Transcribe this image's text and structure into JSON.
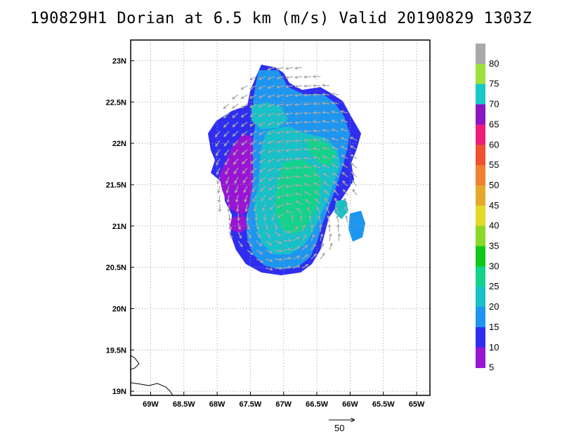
{
  "title": "190829H1 Dorian at 6.5 km (m/s) Valid 20190829 1303Z",
  "map": {
    "lon_range": [
      -69.3,
      -64.8
    ],
    "lat_range": [
      18.95,
      23.25
    ],
    "lon_ticks": [
      {
        "value": -69.0,
        "label": "69W"
      },
      {
        "value": -68.5,
        "label": "68.5W"
      },
      {
        "value": -68.0,
        "label": "68W"
      },
      {
        "value": -67.5,
        "label": "67.5W"
      },
      {
        "value": -67.0,
        "label": "67W"
      },
      {
        "value": -66.5,
        "label": "66.5W"
      },
      {
        "value": -66.0,
        "label": "66W"
      },
      {
        "value": -65.5,
        "label": "65.5W"
      },
      {
        "value": -65.0,
        "label": "65W"
      }
    ],
    "lat_ticks": [
      {
        "value": 19.0,
        "label": "19N"
      },
      {
        "value": 19.5,
        "label": "19.5N"
      },
      {
        "value": 20.0,
        "label": "20N"
      },
      {
        "value": 20.5,
        "label": "20.5N"
      },
      {
        "value": 21.0,
        "label": "21N"
      },
      {
        "value": 21.5,
        "label": "21.5N"
      },
      {
        "value": 22.0,
        "label": "22N"
      },
      {
        "value": 22.5,
        "label": "22.5N"
      },
      {
        "value": 23.0,
        "label": "23N"
      }
    ],
    "grid": "dotted",
    "storm_center": {
      "lon": -66.95,
      "lat": 21.05
    },
    "reference_vector": {
      "value": 50,
      "label": "50"
    }
  },
  "colorbar": {
    "labels": [
      "5",
      "10",
      "15",
      "20",
      "25",
      "30",
      "35",
      "40",
      "45",
      "50",
      "55",
      "60",
      "65",
      "70",
      "75",
      "80"
    ],
    "colors": [
      "#9a14d4",
      "#2f2ef0",
      "#1e96f0",
      "#18c0c8",
      "#14d28c",
      "#10c818",
      "#8cd828",
      "#e4d828",
      "#e4a82c",
      "#ee8030",
      "#ee5034",
      "#ee1e78",
      "#8a18c0",
      "#18c8c8",
      "#a0e03c",
      "#a8a8a8"
    ]
  }
}
